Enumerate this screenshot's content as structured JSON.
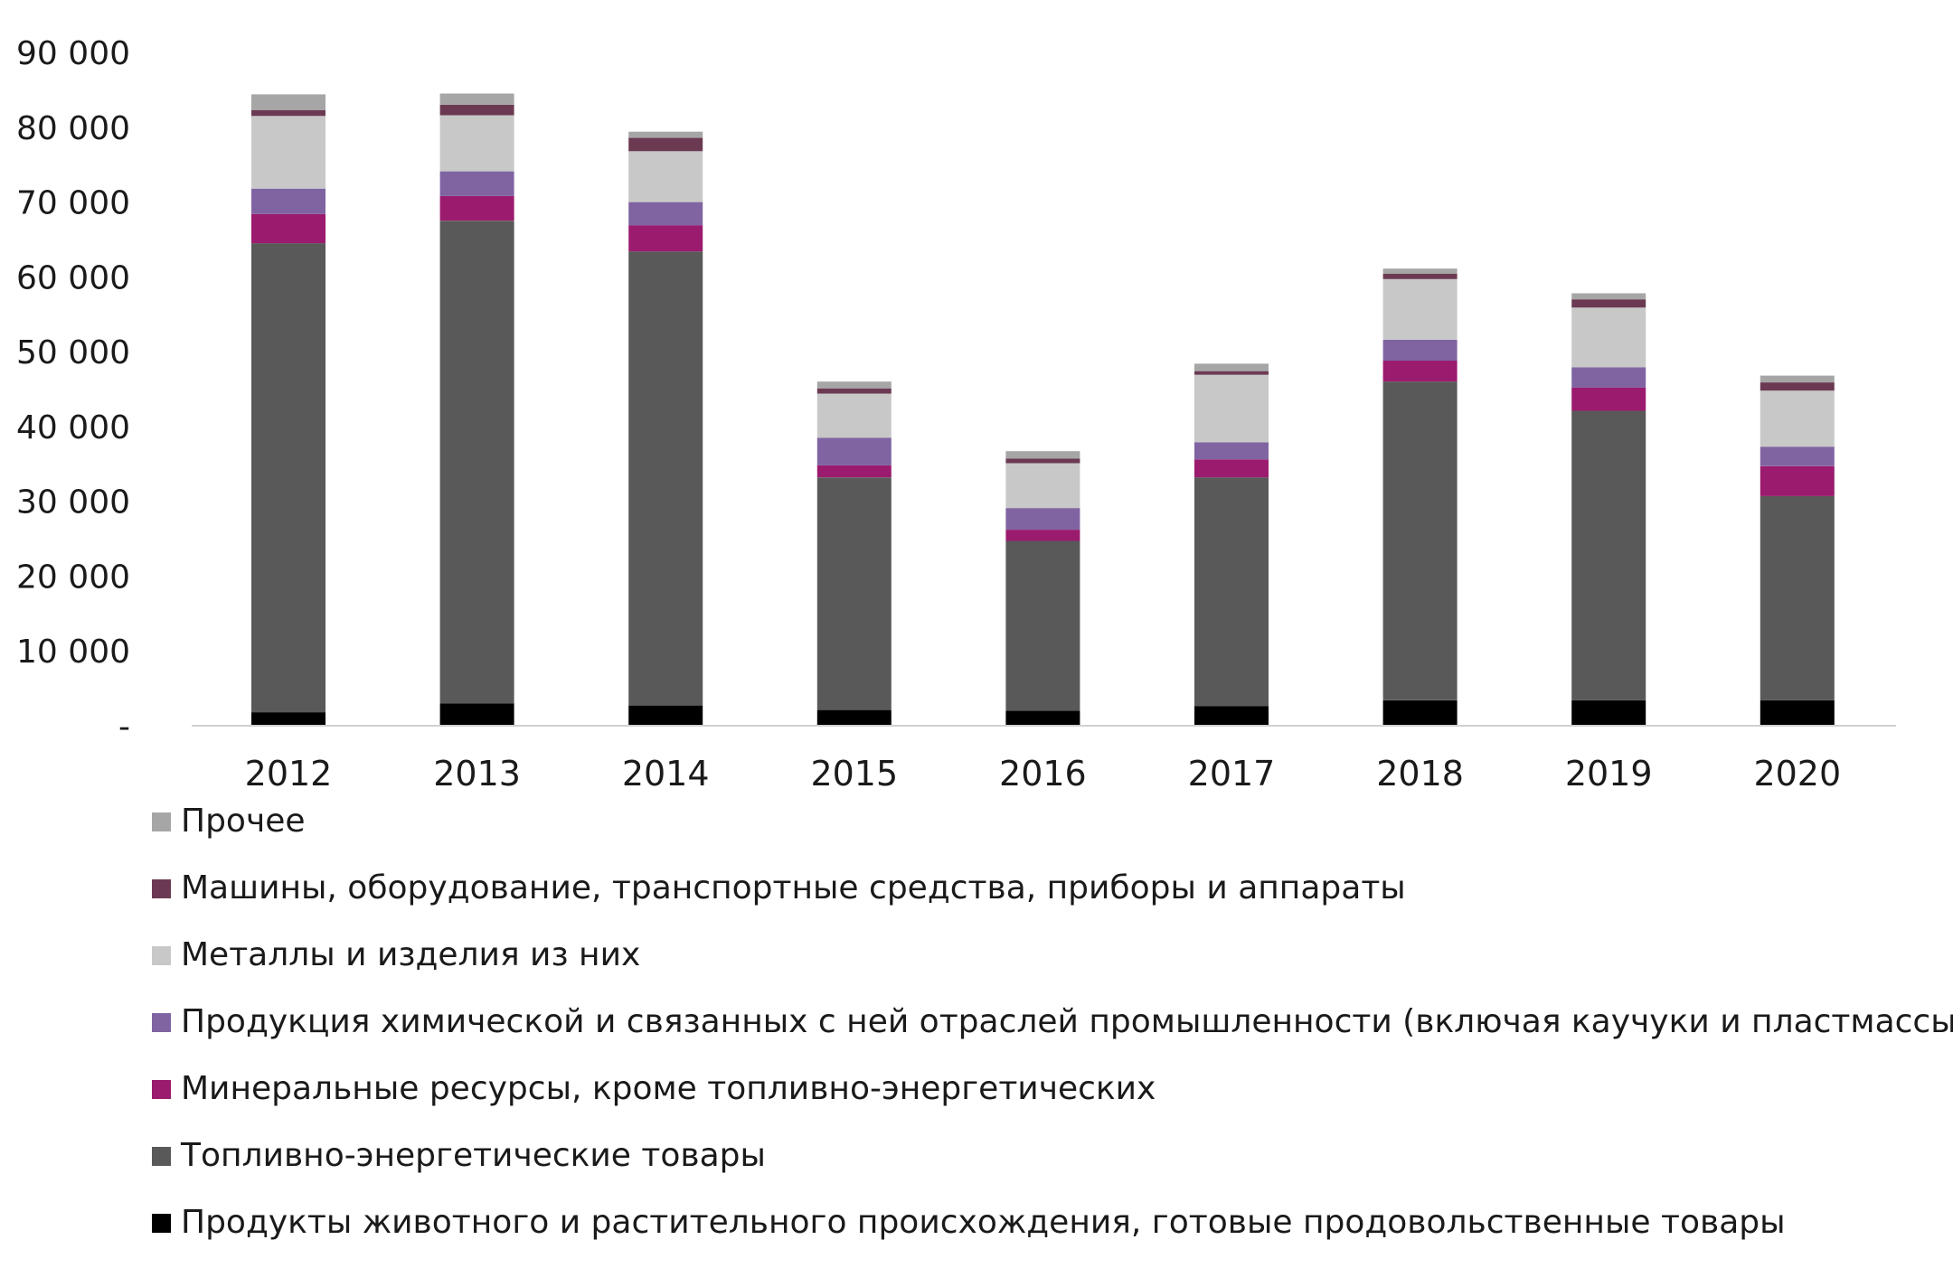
{
  "chart_data": {
    "type": "bar",
    "stacked": true,
    "categories": [
      "2012",
      "2013",
      "2014",
      "2015",
      "2016",
      "2017",
      "2018",
      "2019",
      "2020"
    ],
    "ylim": [
      0,
      90000
    ],
    "yticks": [
      0,
      10000,
      20000,
      30000,
      40000,
      50000,
      60000,
      70000,
      80000,
      90000
    ],
    "ytick_labels": [
      "-",
      "10 000",
      "20 000",
      "30 000",
      "40 000",
      "50 000",
      "60 000",
      "70 000",
      "80 000",
      "90 000"
    ],
    "grid": false,
    "legend_position": "bottom",
    "series": [
      {
        "name": "Продукты животного и растительного происхождения, готовые продовольственные товары",
        "color": "#000000",
        "values": [
          1800,
          3000,
          2700,
          2100,
          2000,
          2600,
          3400,
          3400,
          3400
        ]
      },
      {
        "name": "Топливно-энергетические товары",
        "color": "#595959",
        "values": [
          62700,
          64500,
          60700,
          31100,
          22700,
          30600,
          42600,
          38700,
          27300
        ]
      },
      {
        "name": "Минеральные ресурсы, кроме топливно-энергетических",
        "color": "#9b1b6e",
        "values": [
          3900,
          3300,
          3500,
          1600,
          1500,
          2400,
          2800,
          3100,
          4000
        ]
      },
      {
        "name": "Продукция химической и связанных с ней отраслей промышленности (включая каучуки и пластмассы)",
        "color": "#8064a2",
        "values": [
          3400,
          3300,
          3100,
          3700,
          2900,
          2300,
          2800,
          2700,
          2600
        ]
      },
      {
        "name": "Металлы и изделия из них",
        "color": "#c8c8c8",
        "values": [
          9700,
          7500,
          6800,
          5900,
          6000,
          9000,
          8100,
          8000,
          7500
        ]
      },
      {
        "name": "Машины, оборудование, транспортные средства, приборы и аппараты",
        "color": "#6b3a52",
        "values": [
          800,
          1400,
          1800,
          700,
          600,
          500,
          700,
          1100,
          1100
        ]
      },
      {
        "name": "Прочее",
        "color": "#a6a6a6",
        "values": [
          2100,
          1500,
          800,
          900,
          1000,
          1000,
          700,
          800,
          900
        ]
      }
    ]
  }
}
